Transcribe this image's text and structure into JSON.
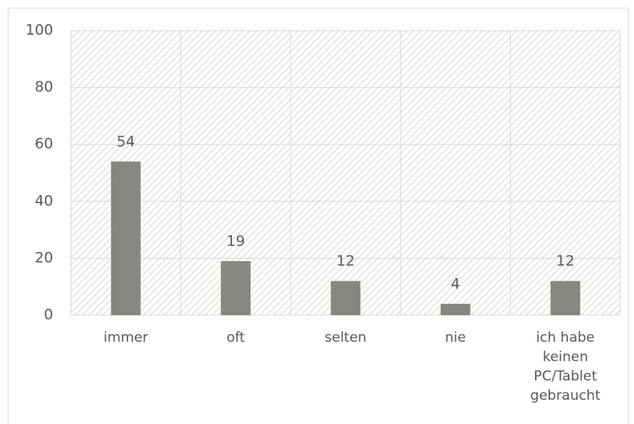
{
  "chart_data": {
    "type": "bar",
    "categories": [
      "immer",
      "oft",
      "selten",
      "nie",
      "ich habe keinen PC/Tablet gebraucht"
    ],
    "values": [
      54,
      19,
      12,
      4,
      12
    ],
    "color": "#878781",
    "ylim": [
      0,
      100
    ],
    "yticks": [
      0,
      20,
      40,
      60,
      80,
      100
    ],
    "grid": true
  }
}
